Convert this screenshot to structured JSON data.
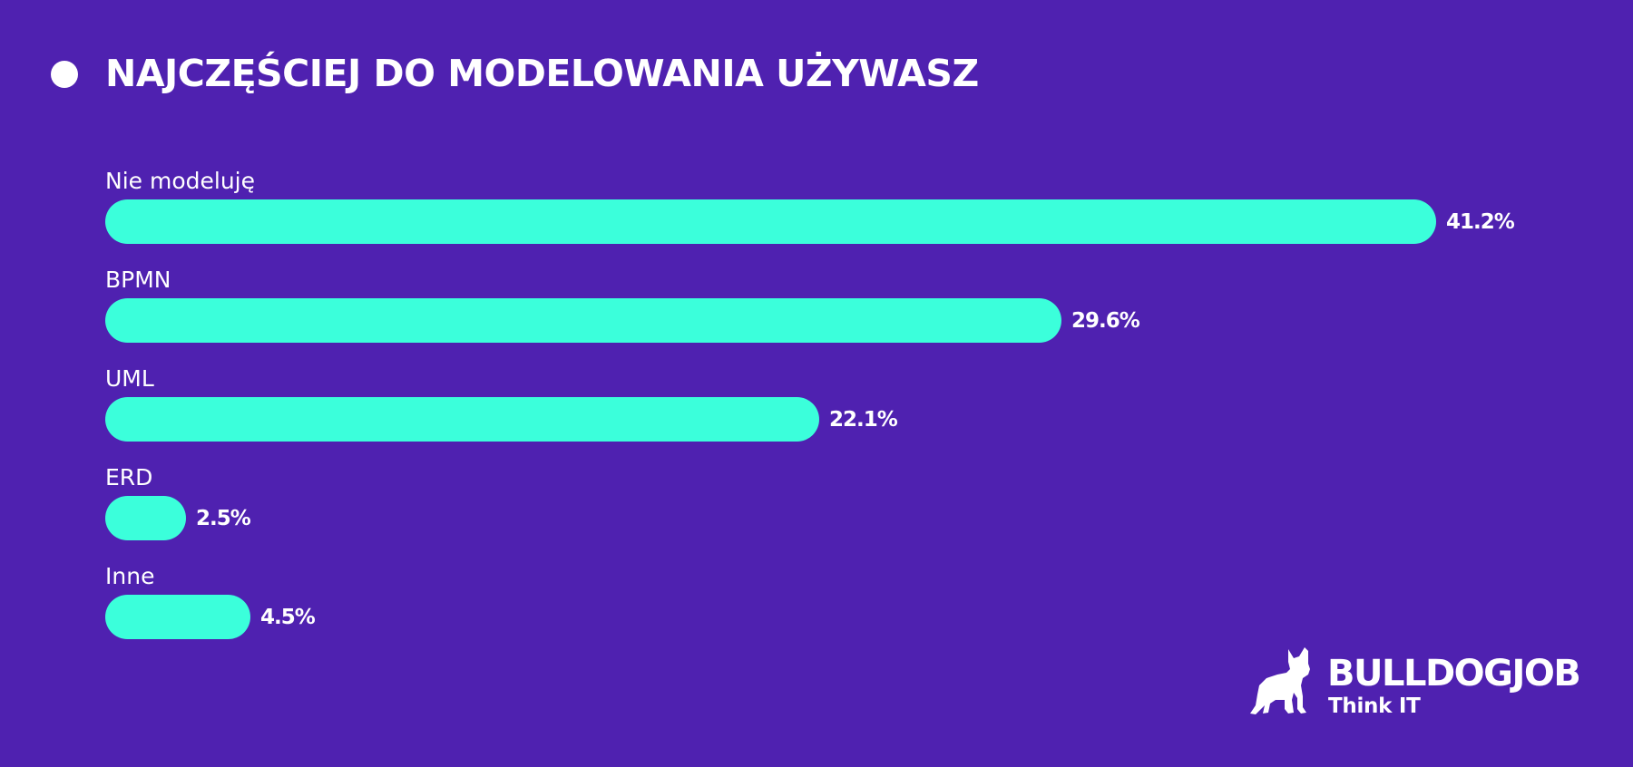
{
  "header": {
    "title": "NAJCZĘŚCIEJ DO MODELOWANIA UŻYWASZ"
  },
  "rows": [
    {
      "label": "Nie modeluję",
      "value_label": "41.2%"
    },
    {
      "label": "BPMN",
      "value_label": "29.6%"
    },
    {
      "label": "UML",
      "value_label": "22.1%"
    },
    {
      "label": "ERD",
      "value_label": "2.5%"
    },
    {
      "label": "Inne",
      "value_label": "4.5%"
    }
  ],
  "logo": {
    "name": "BULLDOGJOB",
    "tagline": "Think IT",
    "icon": "bulldog-icon"
  },
  "colors": {
    "background": "#4f21b0",
    "bar": "#3bffdb",
    "text": "#ffffff"
  },
  "chart_data": {
    "type": "bar",
    "orientation": "horizontal",
    "title": "NAJCZĘŚCIEJ DO MODELOWANIA UŻYWASZ",
    "categories": [
      "Nie modeluję",
      "BPMN",
      "UML",
      "ERD",
      "Inne"
    ],
    "values": [
      41.2,
      29.6,
      22.1,
      2.5,
      4.5
    ],
    "unit": "%",
    "xlabel": "",
    "ylabel": "",
    "grid": false,
    "legend": null,
    "data_labels": true
  }
}
